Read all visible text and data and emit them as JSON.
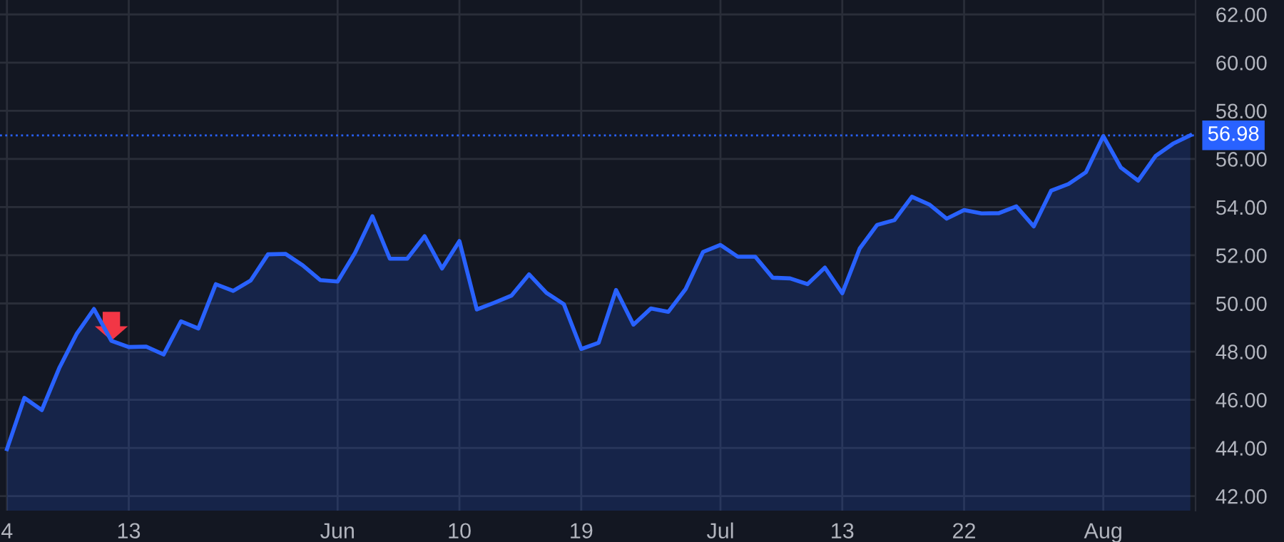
{
  "chart_data": {
    "type": "area",
    "categories": [
      "4",
      null,
      null,
      null,
      null,
      null,
      null,
      "13",
      null,
      null,
      null,
      null,
      null,
      null,
      null,
      null,
      null,
      null,
      null,
      "Jun",
      null,
      null,
      null,
      null,
      null,
      null,
      "10",
      null,
      null,
      null,
      null,
      null,
      null,
      "19",
      null,
      null,
      null,
      null,
      null,
      null,
      null,
      "Jul",
      null,
      null,
      null,
      null,
      null,
      null,
      "13",
      null,
      null,
      null,
      null,
      null,
      null,
      "22",
      null,
      null,
      null,
      null,
      null,
      null,
      null,
      "Aug",
      null,
      null,
      null,
      null,
      null
    ],
    "series": [
      {
        "color": "#2962ff",
        "values": [
          43.95,
          46.08,
          45.57,
          47.31,
          48.73,
          49.77,
          48.45,
          48.19,
          48.21,
          47.88,
          49.26,
          48.96,
          50.8,
          50.52,
          50.95,
          52.04,
          52.06,
          51.58,
          50.97,
          50.91,
          52.1,
          53.62,
          51.86,
          51.86,
          52.79,
          51.45,
          52.59,
          49.75,
          50.03,
          50.33,
          51.21,
          50.44,
          49.97,
          48.11,
          48.37,
          50.56,
          49.12,
          49.79,
          49.65,
          50.6,
          52.14,
          52.43,
          51.94,
          51.94,
          51.07,
          51.04,
          50.8,
          51.49,
          50.42,
          52.28,
          53.26,
          53.46,
          54.43,
          54.11,
          53.52,
          53.88,
          53.74,
          53.75,
          54.03,
          53.2,
          54.68,
          54.96,
          55.45,
          56.95,
          55.65,
          55.1,
          56.12,
          56.63,
          56.98
        ]
      }
    ],
    "ylim": [
      41.4,
      62.6
    ],
    "yticks": [
      {
        "value": 42,
        "label": "42.00"
      },
      {
        "value": 44,
        "label": "44.00"
      },
      {
        "value": 46,
        "label": "46.00"
      },
      {
        "value": 48,
        "label": "48.00"
      },
      {
        "value": 50,
        "label": "50.00"
      },
      {
        "value": 52,
        "label": "52.00"
      },
      {
        "value": 54,
        "label": "54.00"
      },
      {
        "value": 56,
        "label": "56.00"
      },
      {
        "value": 58,
        "label": "58.00"
      },
      {
        "value": 60,
        "label": "60.00"
      },
      {
        "value": 62,
        "label": "62.00"
      }
    ],
    "ref_lines": [
      {
        "axis": "y",
        "value": 56.98,
        "label": "56.98",
        "color": "#2962ff",
        "line_style": "dotted"
      }
    ],
    "grid": true
  }
}
